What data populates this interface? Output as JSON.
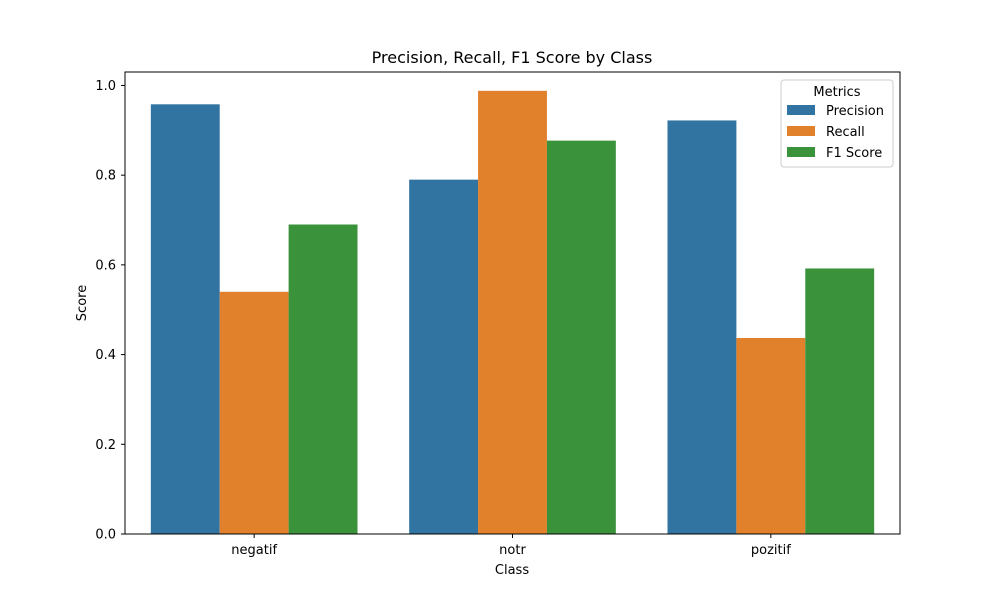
{
  "chart_data": {
    "type": "bar",
    "title": "Precision, Recall, F1 Score by Class",
    "xlabel": "Class",
    "ylabel": "Score",
    "categories": [
      "negatif",
      "notr",
      "pozitif"
    ],
    "series": [
      {
        "name": "Precision",
        "color": "#3274a1",
        "values": [
          0.958,
          0.79,
          0.922
        ]
      },
      {
        "name": "Recall",
        "color": "#e1812c",
        "values": [
          0.54,
          0.988,
          0.437
        ]
      },
      {
        "name": "F1 Score",
        "color": "#3a923a",
        "values": [
          0.69,
          0.877,
          0.592
        ]
      }
    ],
    "ylim": [
      0,
      1.03
    ],
    "yticks": [
      0.0,
      0.2,
      0.4,
      0.6,
      0.8,
      1.0
    ],
    "ytick_labels": [
      "0.0",
      "0.2",
      "0.4",
      "0.6",
      "0.8",
      "1.0"
    ],
    "legend": {
      "title": "Metrics",
      "placement": "top-right"
    },
    "grid": false
  }
}
